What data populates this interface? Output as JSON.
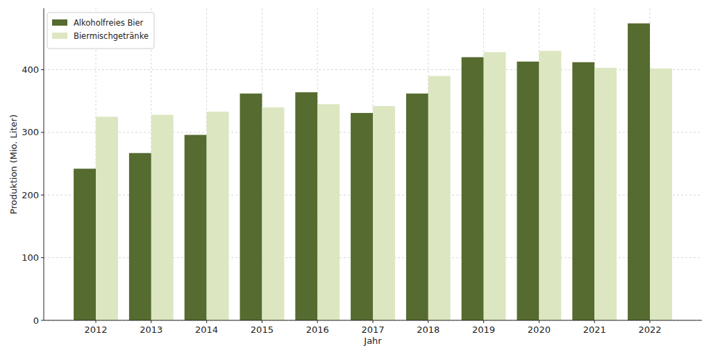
{
  "chart_data": {
    "type": "bar",
    "x_label": "Jahr",
    "y_label": "Produktion (Mio. Liter)",
    "categories": [
      "2012",
      "2013",
      "2014",
      "2015",
      "2016",
      "2017",
      "2018",
      "2019",
      "2020",
      "2021",
      "2022"
    ],
    "series": [
      {
        "name": "Alkoholfreies Bier",
        "color": "#556b2f",
        "values": [
          242,
          267,
          296,
          362,
          364,
          331,
          362,
          420,
          413,
          412,
          474
        ]
      },
      {
        "name": "Biermischgetränke",
        "color": "#dce6c1",
        "values": [
          325,
          328,
          333,
          340,
          345,
          342,
          390,
          428,
          430,
          403,
          402
        ]
      }
    ],
    "ylim": [
      0,
      498
    ],
    "yticks": [
      0,
      100,
      200,
      300,
      400
    ],
    "grid": true,
    "legend": "upper left"
  }
}
